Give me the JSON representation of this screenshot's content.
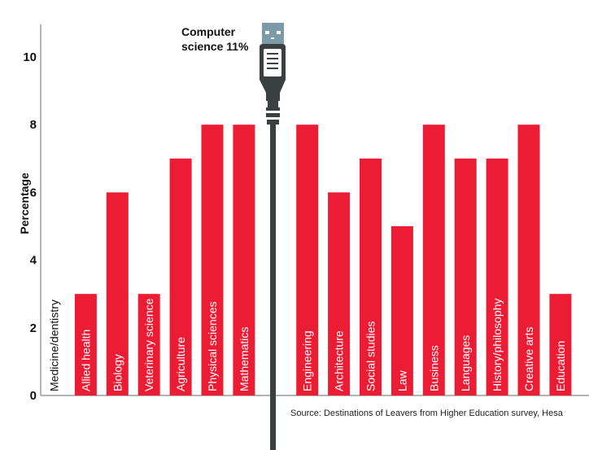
{
  "chart_data": {
    "type": "bar",
    "title": "",
    "xlabel": "",
    "ylabel": "Percentage",
    "ylim": [
      0,
      10
    ],
    "yticks": [
      0,
      2,
      4,
      6,
      8,
      10
    ],
    "grid": false,
    "categories": [
      "Medicine/dentistry",
      "Allied health",
      "Biology",
      "Veterinary science",
      "Agriculture",
      "Physical sciences",
      "Mathematics",
      "Computer science",
      "Engineering",
      "Architecture",
      "Social studies",
      "Law",
      "Business",
      "Languages",
      "History/philosophy",
      "Creative arts",
      "Education"
    ],
    "values": [
      0,
      3,
      6,
      3,
      7,
      8,
      8,
      11,
      8,
      6,
      7,
      5,
      8,
      7,
      7,
      8,
      3
    ],
    "highlight": {
      "category": "Computer science",
      "label": "Computer science 11%",
      "marker": "usb-cable-icon"
    },
    "annotation_lines": [
      "Computer",
      "science 11%"
    ],
    "source": "Source: Destinations of Leavers from Higher Education survey, Hesa",
    "colors": {
      "bar": "#ec1c34",
      "cable": "#3a3f42",
      "plug_head": "#7d9aa8",
      "axis": "#9a9a9a"
    }
  }
}
